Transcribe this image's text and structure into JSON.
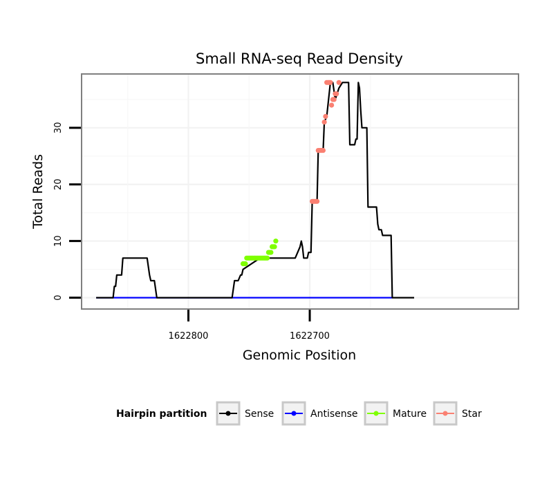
{
  "chart_data": {
    "type": "line",
    "title": "Small RNA-seq Read Density",
    "xlabel": "Genomic Position",
    "ylabel": "Total Reads",
    "xlim": [
      1622888,
      1622528
    ],
    "ylim": [
      -2,
      39.5
    ],
    "x_ticks": [
      1622800,
      1622700
    ],
    "x_tick_labels": [
      "1622800",
      "1622700"
    ],
    "y_ticks": [
      0,
      10,
      20,
      30
    ],
    "y_tick_labels": [
      "0",
      "10",
      "20",
      "30"
    ],
    "grid": true,
    "legend": {
      "title": "Hairpin partition",
      "position": "bottom",
      "items": [
        {
          "label": "Sense",
          "color": "#000000"
        },
        {
          "label": "Antisense",
          "color": "#0000ff"
        },
        {
          "label": "Mature",
          "color": "#7fff00"
        },
        {
          "label": "Star",
          "color": "#fa8072"
        }
      ]
    },
    "series": [
      {
        "name": "Sense",
        "color": "#000000",
        "points": [
          [
            1622876,
            0
          ],
          [
            1622862,
            0
          ],
          [
            1622861,
            2
          ],
          [
            1622860,
            2
          ],
          [
            1622859,
            4
          ],
          [
            1622855,
            4
          ],
          [
            1622854,
            7
          ],
          [
            1622834,
            7
          ],
          [
            1622832,
            4
          ],
          [
            1622831,
            3
          ],
          [
            1622828,
            3
          ],
          [
            1622826,
            0
          ],
          [
            1622764,
            0
          ],
          [
            1622762,
            3
          ],
          [
            1622759,
            3
          ],
          [
            1622757,
            4
          ],
          [
            1622756,
            4
          ],
          [
            1622755,
            5
          ],
          [
            1622741,
            7
          ],
          [
            1622712,
            7
          ],
          [
            1622708,
            9
          ],
          [
            1622707,
            10
          ],
          [
            1622706,
            9
          ],
          [
            1622705,
            7
          ],
          [
            1622702,
            7
          ],
          [
            1622701,
            8
          ],
          [
            1622699,
            8
          ],
          [
            1622698,
            17
          ],
          [
            1622694,
            17
          ],
          [
            1622693,
            26
          ],
          [
            1622689,
            26
          ],
          [
            1622688,
            31
          ],
          [
            1622686,
            32
          ],
          [
            1622683,
            38
          ],
          [
            1622681,
            38
          ],
          [
            1622679,
            35
          ],
          [
            1622676,
            37
          ],
          [
            1622673,
            38
          ],
          [
            1622668,
            38
          ],
          [
            1622667,
            27
          ],
          [
            1622663,
            27
          ],
          [
            1622662,
            28
          ],
          [
            1622661,
            28
          ],
          [
            1622660,
            38
          ],
          [
            1622659,
            37
          ],
          [
            1622658,
            33
          ],
          [
            1622657,
            30
          ],
          [
            1622653,
            30
          ],
          [
            1622652,
            16
          ],
          [
            1622645,
            16
          ],
          [
            1622644,
            13
          ],
          [
            1622643,
            12
          ],
          [
            1622641,
            12
          ],
          [
            1622640,
            11
          ],
          [
            1622633,
            11
          ],
          [
            1622632,
            0
          ],
          [
            1622614,
            0
          ]
        ]
      },
      {
        "name": "Antisense",
        "color": "#0000ff",
        "points": [
          [
            1622876,
            0
          ],
          [
            1622826,
            0
          ],
          [
            1622764,
            0
          ],
          [
            1622632,
            0
          ]
        ]
      },
      {
        "name": "Mature",
        "color": "#7fff00",
        "points": [
          [
            1622755,
            6
          ],
          [
            1622754,
            6
          ],
          [
            1622753,
            6
          ],
          [
            1622752,
            7
          ],
          [
            1622751,
            7
          ],
          [
            1622750,
            7
          ],
          [
            1622749,
            7
          ],
          [
            1622748,
            7
          ],
          [
            1622747,
            7
          ],
          [
            1622746,
            7
          ],
          [
            1622745,
            7
          ],
          [
            1622744,
            7
          ],
          [
            1622743,
            7
          ],
          [
            1622742,
            7
          ],
          [
            1622741,
            7
          ],
          [
            1622740,
            7
          ],
          [
            1622739,
            7
          ],
          [
            1622738,
            7
          ],
          [
            1622737,
            7
          ],
          [
            1622736,
            7
          ],
          [
            1622735,
            7
          ],
          [
            1622734,
            8
          ],
          [
            1622733,
            8
          ],
          [
            1622732,
            8
          ],
          [
            1622731,
            9
          ],
          [
            1622730,
            9
          ],
          [
            1622729,
            9
          ],
          [
            1622728,
            10
          ]
        ]
      },
      {
        "name": "Star",
        "color": "#fa8072",
        "points": [
          [
            1622698,
            17
          ],
          [
            1622697,
            17
          ],
          [
            1622696,
            17
          ],
          [
            1622695,
            17
          ],
          [
            1622694,
            17
          ],
          [
            1622693,
            26
          ],
          [
            1622692,
            26
          ],
          [
            1622691,
            26
          ],
          [
            1622690,
            26
          ],
          [
            1622689,
            26
          ],
          [
            1622688,
            31
          ],
          [
            1622687,
            32
          ],
          [
            1622686,
            38
          ],
          [
            1622685,
            38
          ],
          [
            1622684,
            38
          ],
          [
            1622683,
            38
          ],
          [
            1622682,
            34
          ],
          [
            1622681,
            35
          ],
          [
            1622680,
            35
          ],
          [
            1622679,
            36
          ],
          [
            1622678,
            36
          ],
          [
            1622676,
            38
          ]
        ]
      }
    ]
  }
}
